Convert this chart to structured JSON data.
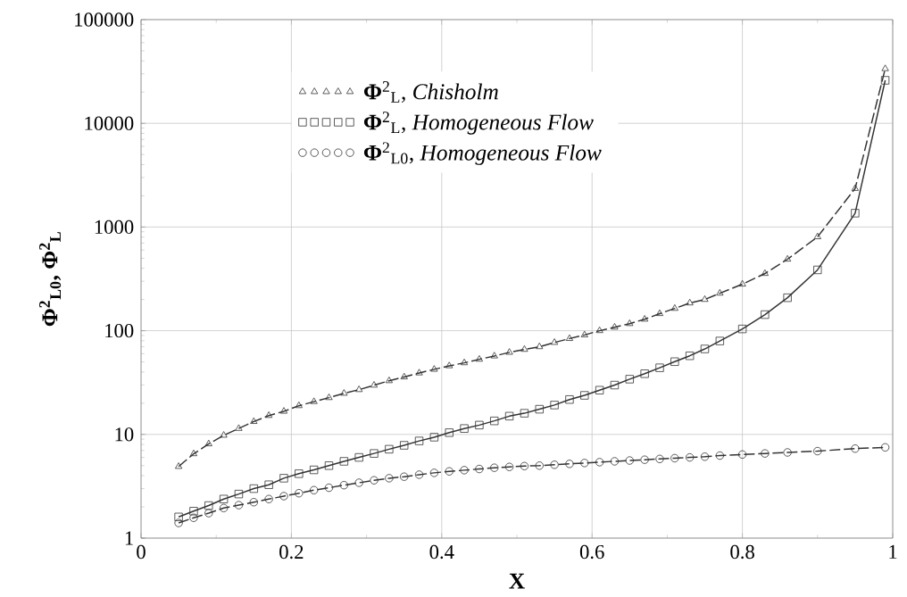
{
  "chart_data": {
    "type": "line",
    "xlabel": "X",
    "ylabel": "**Φ**$^{2}$$_{L0}$, **Φ**$^{2}$$_{L}$",
    "log": "y",
    "grid": true,
    "legend": "top left",
    "xlim": [
      0,
      1
    ],
    "xticks": [
      0,
      0.2,
      0.4,
      0.6,
      0.8,
      1
    ],
    "ylim": [
      1,
      100000
    ],
    "yticks": [
      1,
      10,
      100,
      1000,
      10000,
      100000
    ],
    "x": [
      0.05,
      0.07,
      0.09,
      0.11,
      0.13,
      0.15,
      0.17,
      0.19,
      0.21,
      0.23,
      0.25,
      0.27,
      0.29,
      0.31,
      0.33,
      0.35,
      0.37,
      0.39,
      0.41,
      0.43,
      0.45,
      0.47,
      0.49,
      0.51,
      0.53,
      0.55,
      0.57,
      0.59,
      0.61,
      0.63,
      0.65,
      0.67,
      0.69,
      0.71,
      0.73,
      0.75,
      0.77,
      0.8,
      0.83,
      0.86,
      0.9,
      0.95,
      0.99
    ],
    "series": [
      {
        "name": "**Φ**$^{2}$$_{L}$, *Chisholm*",
        "color": "#333333",
        "marker": "triangle",
        "line_style": "dashed",
        "values": [
          4.9,
          6.5,
          8.1,
          9.8,
          11.4,
          13.3,
          15.2,
          16.7,
          18.9,
          20.7,
          22.6,
          24.9,
          27,
          29.8,
          32.9,
          35.8,
          39.1,
          42.4,
          45.8,
          49,
          53,
          57,
          61.8,
          66,
          70,
          77,
          84,
          91,
          100,
          108,
          117,
          129,
          146,
          164,
          185,
          200,
          230,
          281,
          356,
          489,
          804,
          2350,
          33600
        ]
      },
      {
        "name": "**Φ**$^{2}$$_{L}$, *Homogeneous Flow*",
        "color": "#333333",
        "marker": "square",
        "line_style": "solid",
        "values": [
          1.6,
          1.82,
          2.06,
          2.38,
          2.66,
          3,
          3.27,
          3.78,
          4.18,
          4.55,
          5,
          5.5,
          6,
          6.55,
          7.2,
          7.85,
          8.65,
          9.4,
          10.4,
          11.4,
          12.3,
          13.5,
          15,
          16,
          17.5,
          19.2,
          21.7,
          23.8,
          26.7,
          29.9,
          34.1,
          38.5,
          43.9,
          50.3,
          57.3,
          66.7,
          79.6,
          104,
          143,
          208,
          386,
          1360,
          26000
        ]
      },
      {
        "name": "**Φ**$^{2}$$_{L0}$, *Homogeneous Flow*",
        "color": "#333333",
        "marker": "circle",
        "line_style": "dashed",
        "values": [
          1.4,
          1.57,
          1.74,
          1.95,
          2.08,
          2.22,
          2.38,
          2.54,
          2.71,
          2.9,
          3.06,
          3.24,
          3.42,
          3.61,
          3.78,
          3.91,
          4.09,
          4.26,
          4.4,
          4.52,
          4.64,
          4.77,
          4.86,
          4.95,
          5,
          5.1,
          5.2,
          5.3,
          5.4,
          5.5,
          5.6,
          5.7,
          5.8,
          5.9,
          6,
          6.1,
          6.25,
          6.4,
          6.55,
          6.7,
          6.9,
          7.3,
          7.5
        ]
      }
    ]
  }
}
